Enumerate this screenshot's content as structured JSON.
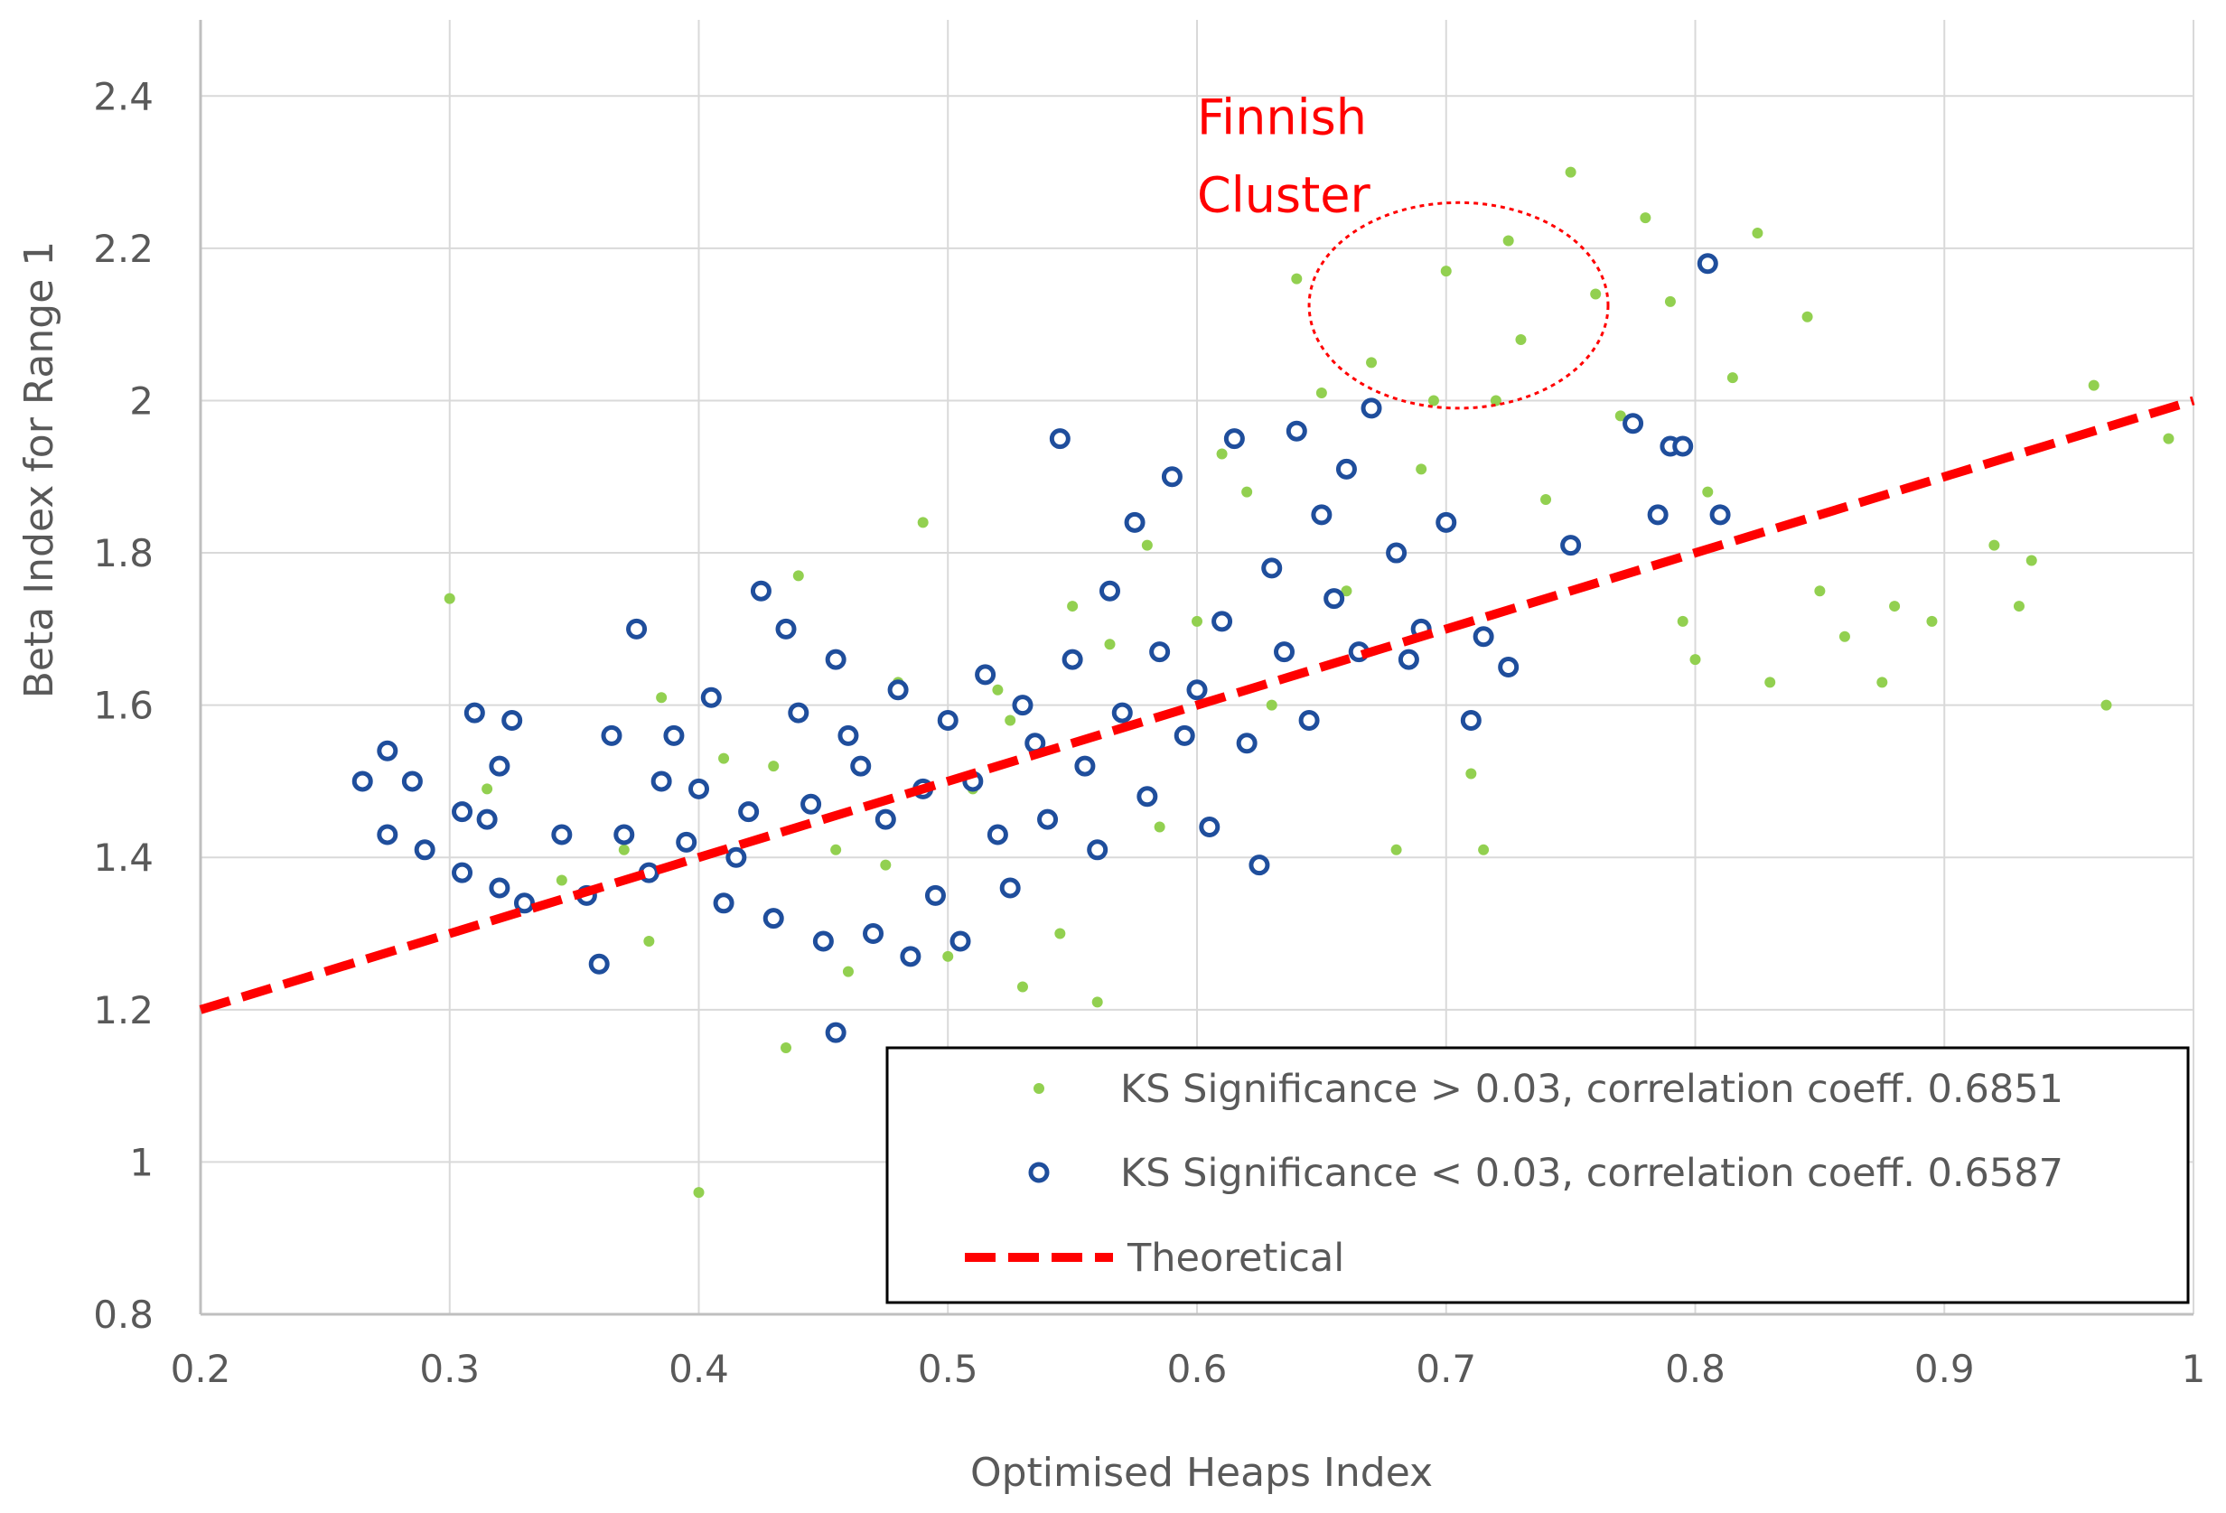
{
  "chart_data": {
    "type": "scatter",
    "title": "",
    "xlabel": "Optimised Heaps Index",
    "ylabel": "Beta Index for Range 1",
    "xlim": [
      0.2,
      1
    ],
    "ylim": [
      0.8,
      2.5
    ],
    "x_ticks": [
      "0.2",
      "0.3",
      "0.4",
      "0.5",
      "0.6",
      "0.7",
      "0.8",
      "0.9",
      "1"
    ],
    "y_ticks": [
      "0.8",
      "1",
      "1.2",
      "1.4",
      "1.6",
      "1.8",
      "2",
      "2.2",
      "2.4"
    ],
    "grid": true,
    "legend_position": "bottom-right",
    "series": [
      {
        "name": "KS Significance > 0.03, correlation coeff. 0.6851",
        "marker": "filled-dot",
        "color": "#92d050",
        "points": [
          [
            0.3,
            1.74
          ],
          [
            0.315,
            1.49
          ],
          [
            0.345,
            1.37
          ],
          [
            0.37,
            1.41
          ],
          [
            0.38,
            1.29
          ],
          [
            0.385,
            1.61
          ],
          [
            0.4,
            0.96
          ],
          [
            0.41,
            1.53
          ],
          [
            0.43,
            1.52
          ],
          [
            0.435,
            1.15
          ],
          [
            0.44,
            1.77
          ],
          [
            0.455,
            1.41
          ],
          [
            0.46,
            1.25
          ],
          [
            0.475,
            1.39
          ],
          [
            0.48,
            1.63
          ],
          [
            0.49,
            1.84
          ],
          [
            0.5,
            1.27
          ],
          [
            0.51,
            1.49
          ],
          [
            0.52,
            1.62
          ],
          [
            0.525,
            1.58
          ],
          [
            0.53,
            1.23
          ],
          [
            0.545,
            1.3
          ],
          [
            0.55,
            1.73
          ],
          [
            0.56,
            1.21
          ],
          [
            0.565,
            1.68
          ],
          [
            0.58,
            1.81
          ],
          [
            0.585,
            1.44
          ],
          [
            0.6,
            1.71
          ],
          [
            0.61,
            1.93
          ],
          [
            0.62,
            1.88
          ],
          [
            0.63,
            1.6
          ],
          [
            0.64,
            2.16
          ],
          [
            0.65,
            2.01
          ],
          [
            0.66,
            1.75
          ],
          [
            0.67,
            2.05
          ],
          [
            0.68,
            1.41
          ],
          [
            0.69,
            1.91
          ],
          [
            0.695,
            2.0
          ],
          [
            0.7,
            2.17
          ],
          [
            0.71,
            1.51
          ],
          [
            0.715,
            1.41
          ],
          [
            0.72,
            2.0
          ],
          [
            0.725,
            2.21
          ],
          [
            0.73,
            2.08
          ],
          [
            0.74,
            1.87
          ],
          [
            0.75,
            2.3
          ],
          [
            0.76,
            2.14
          ],
          [
            0.77,
            1.98
          ],
          [
            0.78,
            2.24
          ],
          [
            0.79,
            2.13
          ],
          [
            0.795,
            1.71
          ],
          [
            0.8,
            1.66
          ],
          [
            0.805,
            1.88
          ],
          [
            0.815,
            2.03
          ],
          [
            0.825,
            2.22
          ],
          [
            0.83,
            1.63
          ],
          [
            0.845,
            2.11
          ],
          [
            0.85,
            1.75
          ],
          [
            0.86,
            1.69
          ],
          [
            0.875,
            1.63
          ],
          [
            0.88,
            1.73
          ],
          [
            0.895,
            1.71
          ],
          [
            0.92,
            1.81
          ],
          [
            0.93,
            1.73
          ],
          [
            0.935,
            1.79
          ],
          [
            0.96,
            2.02
          ],
          [
            0.965,
            1.6
          ],
          [
            0.99,
            1.95
          ]
        ]
      },
      {
        "name": "KS Significance < 0.03, correlation coeff. 0.6587",
        "marker": "hollow-circle",
        "color": "#1f4e9c",
        "points": [
          [
            0.265,
            1.5
          ],
          [
            0.275,
            1.54
          ],
          [
            0.275,
            1.43
          ],
          [
            0.285,
            1.5
          ],
          [
            0.29,
            1.41
          ],
          [
            0.305,
            1.38
          ],
          [
            0.305,
            1.46
          ],
          [
            0.31,
            1.59
          ],
          [
            0.315,
            1.45
          ],
          [
            0.32,
            1.52
          ],
          [
            0.32,
            1.36
          ],
          [
            0.325,
            1.58
          ],
          [
            0.33,
            1.34
          ],
          [
            0.345,
            1.43
          ],
          [
            0.355,
            1.35
          ],
          [
            0.36,
            1.26
          ],
          [
            0.365,
            1.56
          ],
          [
            0.37,
            1.43
          ],
          [
            0.375,
            1.7
          ],
          [
            0.38,
            1.38
          ],
          [
            0.385,
            1.5
          ],
          [
            0.39,
            1.56
          ],
          [
            0.395,
            1.42
          ],
          [
            0.4,
            1.49
          ],
          [
            0.405,
            1.61
          ],
          [
            0.41,
            1.34
          ],
          [
            0.415,
            1.4
          ],
          [
            0.42,
            1.46
          ],
          [
            0.425,
            1.75
          ],
          [
            0.43,
            1.32
          ],
          [
            0.435,
            1.7
          ],
          [
            0.44,
            1.59
          ],
          [
            0.445,
            1.47
          ],
          [
            0.45,
            1.29
          ],
          [
            0.455,
            1.66
          ],
          [
            0.455,
            1.17
          ],
          [
            0.46,
            1.56
          ],
          [
            0.465,
            1.52
          ],
          [
            0.47,
            1.3
          ],
          [
            0.475,
            1.45
          ],
          [
            0.48,
            1.62
          ],
          [
            0.485,
            1.27
          ],
          [
            0.49,
            1.49
          ],
          [
            0.495,
            1.35
          ],
          [
            0.5,
            1.58
          ],
          [
            0.505,
            1.29
          ],
          [
            0.51,
            1.5
          ],
          [
            0.515,
            1.64
          ],
          [
            0.52,
            1.43
          ],
          [
            0.525,
            1.36
          ],
          [
            0.53,
            1.6
          ],
          [
            0.535,
            1.55
          ],
          [
            0.54,
            1.45
          ],
          [
            0.545,
            1.95
          ],
          [
            0.55,
            1.66
          ],
          [
            0.555,
            1.52
          ],
          [
            0.56,
            1.41
          ],
          [
            0.565,
            1.75
          ],
          [
            0.57,
            1.59
          ],
          [
            0.575,
            1.84
          ],
          [
            0.58,
            1.48
          ],
          [
            0.585,
            1.67
          ],
          [
            0.59,
            1.9
          ],
          [
            0.595,
            1.56
          ],
          [
            0.6,
            1.62
          ],
          [
            0.605,
            1.44
          ],
          [
            0.61,
            1.71
          ],
          [
            0.615,
            1.95
          ],
          [
            0.62,
            1.55
          ],
          [
            0.625,
            1.39
          ],
          [
            0.63,
            1.78
          ],
          [
            0.635,
            1.67
          ],
          [
            0.64,
            1.96
          ],
          [
            0.645,
            1.58
          ],
          [
            0.65,
            1.85
          ],
          [
            0.655,
            1.74
          ],
          [
            0.66,
            1.91
          ],
          [
            0.665,
            1.67
          ],
          [
            0.67,
            1.99
          ],
          [
            0.68,
            1.8
          ],
          [
            0.685,
            1.66
          ],
          [
            0.69,
            1.7
          ],
          [
            0.7,
            1.84
          ],
          [
            0.71,
            1.58
          ],
          [
            0.715,
            1.69
          ],
          [
            0.725,
            1.65
          ],
          [
            0.75,
            1.81
          ],
          [
            0.775,
            1.97
          ],
          [
            0.785,
            1.85
          ],
          [
            0.79,
            1.94
          ],
          [
            0.795,
            1.94
          ],
          [
            0.805,
            2.18
          ],
          [
            0.81,
            1.85
          ]
        ]
      },
      {
        "name": "Theoretical",
        "marker": "dashed-line",
        "color": "#ff0000",
        "x": [
          0.2,
          1
        ],
        "y": [
          1.2,
          2
        ]
      }
    ],
    "annotations": [
      {
        "text": "Finnish Cluster",
        "lines": [
          "Finnish",
          "Cluster"
        ],
        "color": "#ff0000",
        "ellipse": {
          "cx": 0.705,
          "cy": 2.125,
          "rx": 0.06,
          "ry": 0.135
        }
      }
    ]
  }
}
